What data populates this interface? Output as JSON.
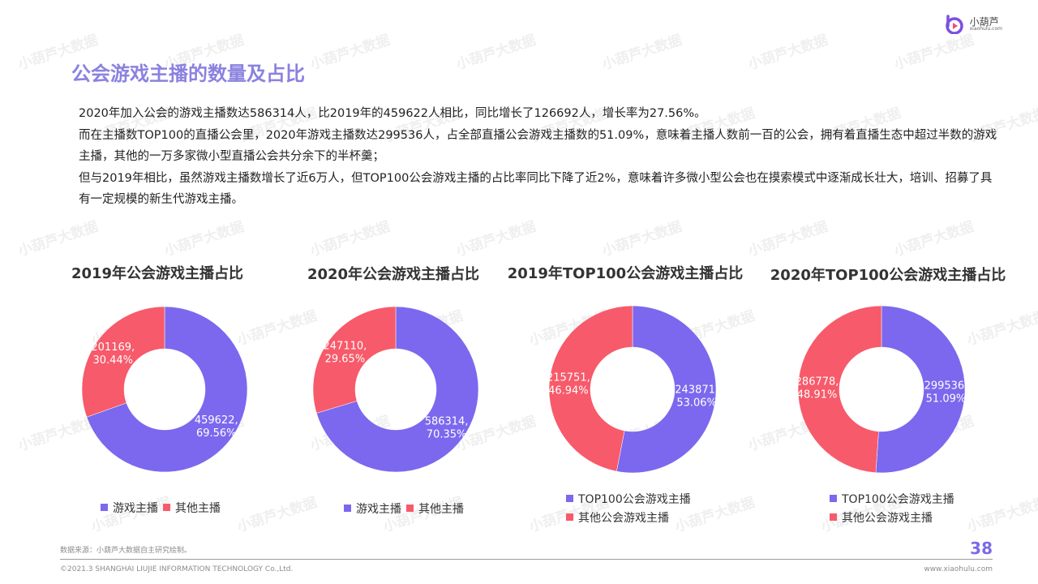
{
  "brand": {
    "name": "小葫芦",
    "domain": "xiaohulu.com",
    "watermark": "小葫芦大数据"
  },
  "page": {
    "title": "公会游戏主播的数量及占比",
    "paragraphs": [
      "2020年加入公会的游戏主播数达586314人，比2019年的459622人相比，同比增长了126692人，增长率为27.56%。",
      "而在主播数TOP100的直播公会里，2020年游戏主播数达299536人，占全部直播公会游戏主播数的51.09%，意味着主播人数前一百的公会，拥有着直播生态中超过半数的游戏主播，其他的一万多家微小型直播公会共分余下的半杯羹；",
      "但与2019年相比，虽然游戏主播数增长了近6万人，但TOP100公会游戏主播的占比率同比下降了近2%，意味着许多微小型公会也在摸索模式中逐渐成长壮大，培训、招募了具有一定规模的新生代游戏主播。"
    ],
    "page_number": "38"
  },
  "footer": {
    "source": "数据来源：小葫芦大数据自主研究绘制。",
    "copyright": "©2021.3 SHANGHAI LIUJIE INFORMATION  TECHNOLOGY Co.,Ltd.",
    "url": "www.xiaohulu.com"
  },
  "colors": {
    "purple": "#7b68ee",
    "red": "#f75a6a",
    "title": "#8a82e0"
  },
  "chart_data": [
    {
      "type": "pie",
      "title": "2019年公会游戏主播占比",
      "series": [
        {
          "name": "游戏主播",
          "value": 459622,
          "label": "69.56%",
          "color": "#7b68ee"
        },
        {
          "name": "其他主播",
          "value": 201169,
          "label": "30.44%",
          "color": "#f75a6a"
        }
      ],
      "legend": "bottom"
    },
    {
      "type": "pie",
      "title": "2020年公会游戏主播占比",
      "series": [
        {
          "name": "游戏主播",
          "value": 586314,
          "label": "70.35%",
          "color": "#7b68ee"
        },
        {
          "name": "其他主播",
          "value": 247110,
          "label": "29.65%",
          "color": "#f75a6a"
        }
      ],
      "legend": "bottom"
    },
    {
      "type": "pie",
      "title": "2019年TOP100公会游戏主播占比",
      "series": [
        {
          "name": "TOP100公会游戏主播",
          "value": 243871,
          "label": "53.06%",
          "color": "#7b68ee"
        },
        {
          "name": "其他公会游戏主播",
          "value": 215751,
          "label": "46.94%",
          "color": "#f75a6a"
        }
      ],
      "legend": "bottom"
    },
    {
      "type": "pie",
      "title": "2020年TOP100公会游戏主播占比",
      "series": [
        {
          "name": "TOP100公会游戏主播",
          "value": 299536,
          "label": "51.09%",
          "color": "#7b68ee"
        },
        {
          "name": "其他公会游戏主播",
          "value": 286778,
          "label": "48.91%",
          "color": "#f75a6a"
        }
      ],
      "legend": "bottom"
    }
  ]
}
